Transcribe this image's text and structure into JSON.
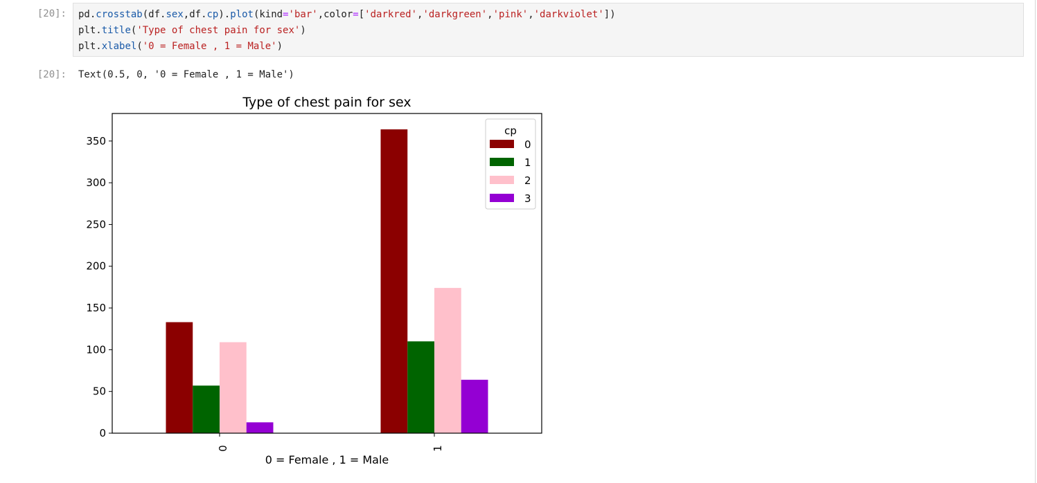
{
  "cell": {
    "in_prompt": "[20]:",
    "out_prompt": "[20]:",
    "code_lines": [
      [
        {
          "t": "pd",
          "c": ""
        },
        {
          "t": ".",
          "c": ""
        },
        {
          "t": "crosstab",
          "c": "attr"
        },
        {
          "t": "(df",
          "c": ""
        },
        {
          "t": ".",
          "c": ""
        },
        {
          "t": "sex",
          "c": "attr"
        },
        {
          "t": ",df",
          "c": ""
        },
        {
          "t": ".",
          "c": ""
        },
        {
          "t": "cp",
          "c": "attr"
        },
        {
          "t": ")",
          "c": ""
        },
        {
          "t": ".",
          "c": ""
        },
        {
          "t": "plot",
          "c": "attr"
        },
        {
          "t": "(kind",
          "c": ""
        },
        {
          "t": "=",
          "c": "op"
        },
        {
          "t": "'bar'",
          "c": "str"
        },
        {
          "t": ",color",
          "c": ""
        },
        {
          "t": "=",
          "c": "op"
        },
        {
          "t": "[",
          "c": ""
        },
        {
          "t": "'darkred'",
          "c": "str"
        },
        {
          "t": ",",
          "c": ""
        },
        {
          "t": "'darkgreen'",
          "c": "str"
        },
        {
          "t": ",",
          "c": ""
        },
        {
          "t": "'pink'",
          "c": "str"
        },
        {
          "t": ",",
          "c": ""
        },
        {
          "t": "'darkviolet'",
          "c": "str"
        },
        {
          "t": "])",
          "c": ""
        }
      ],
      [
        {
          "t": "plt",
          "c": ""
        },
        {
          "t": ".",
          "c": ""
        },
        {
          "t": "title",
          "c": "attr"
        },
        {
          "t": "(",
          "c": ""
        },
        {
          "t": "'Type of chest pain for sex'",
          "c": "str"
        },
        {
          "t": ")",
          "c": ""
        }
      ],
      [
        {
          "t": "plt",
          "c": ""
        },
        {
          "t": ".",
          "c": ""
        },
        {
          "t": "xlabel",
          "c": "attr"
        },
        {
          "t": "(",
          "c": ""
        },
        {
          "t": "'0 = Female , 1 = Male'",
          "c": "str"
        },
        {
          "t": ")",
          "c": ""
        }
      ]
    ],
    "output_text": "Text(0.5, 0, '0 = Female , 1 = Male')"
  },
  "chart_data": {
    "type": "bar",
    "title": "Type of chest pain for sex",
    "xlabel": "0 = Female , 1 = Male",
    "ylabel": "",
    "categories": [
      "0",
      "1"
    ],
    "ylim": [
      0,
      383
    ],
    "yticks": [
      0,
      50,
      100,
      150,
      200,
      250,
      300,
      350
    ],
    "grid": false,
    "legend": {
      "title": "cp",
      "placement": "top-right"
    },
    "series": [
      {
        "name": "0",
        "color": "#8b0000",
        "values": [
          133,
          364
        ]
      },
      {
        "name": "1",
        "color": "#006400",
        "values": [
          57,
          110
        ]
      },
      {
        "name": "2",
        "color": "#ffc0cb",
        "values": [
          109,
          174
        ]
      },
      {
        "name": "3",
        "color": "#9400d3",
        "values": [
          13,
          64
        ]
      }
    ]
  }
}
